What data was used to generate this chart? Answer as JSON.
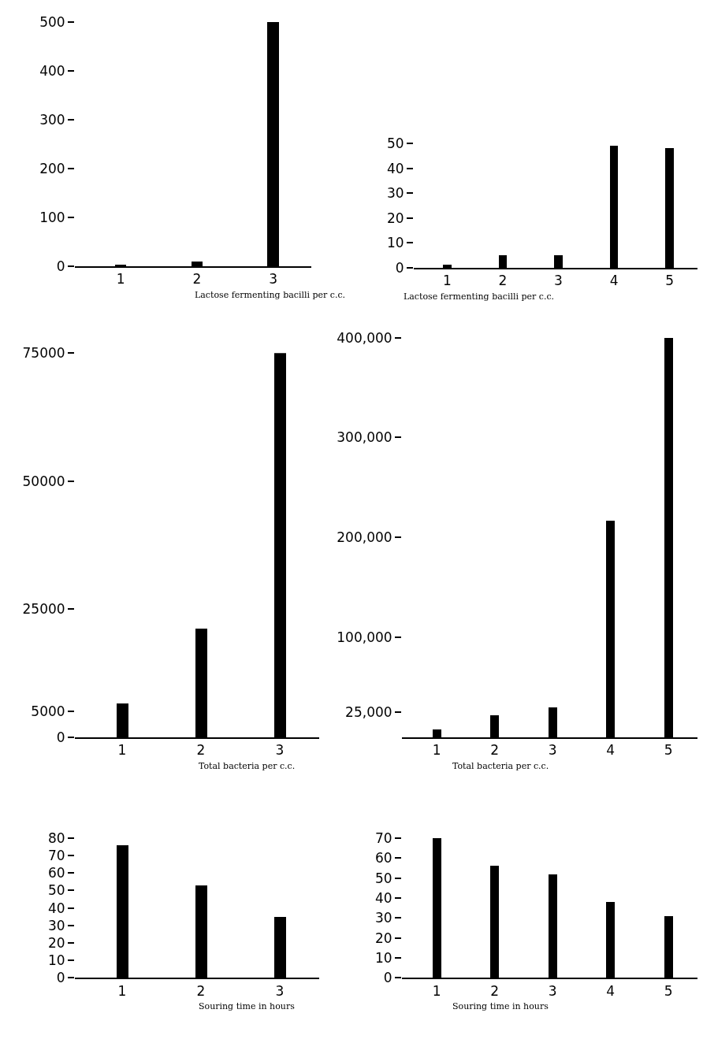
{
  "chart_data": [
    {
      "type": "bar",
      "categories": [
        "1",
        "2",
        "3"
      ],
      "values": [
        4,
        10,
        500
      ],
      "color": "#000000",
      "xlabel": "Lactose fermenting bacilli per c.c.",
      "ylim": [
        0,
        500
      ],
      "yticks": [
        0,
        100,
        200,
        300,
        400,
        500
      ]
    },
    {
      "type": "bar",
      "categories": [
        "1",
        "2",
        "3",
        "4",
        "5"
      ],
      "values": [
        1,
        5,
        5,
        49,
        48
      ],
      "color": "#000000",
      "xlabel": "Lactose fermenting bacilli per c.c.",
      "ylim": [
        0,
        50
      ],
      "yticks": [
        0,
        10,
        20,
        30,
        40,
        50
      ]
    },
    {
      "type": "bar",
      "categories": [
        "1",
        "2",
        "3"
      ],
      "values": [
        6600,
        21200,
        75000
      ],
      "color": "#000000",
      "xlabel": "Total bacteria per c.c.",
      "ylim": [
        0,
        75000
      ],
      "yticks": [
        0,
        5000,
        25000,
        50000,
        75000
      ]
    },
    {
      "type": "bar",
      "categories": [
        "1",
        "2",
        "3",
        "4",
        "5"
      ],
      "values": [
        8000,
        22000,
        30000,
        217000,
        400000
      ],
      "color": "#000000",
      "xlabel": "Total bacteria per c.c.",
      "ylim": [
        0,
        400000
      ],
      "yticks": [
        {
          "value": 25000,
          "label": "25,000"
        },
        {
          "value": 100000,
          "label": "100,000"
        },
        {
          "value": 200000,
          "label": "200,000"
        },
        {
          "value": 300000,
          "label": "300,000"
        },
        {
          "value": 400000,
          "label": "400,000"
        }
      ]
    },
    {
      "type": "bar",
      "categories": [
        "1",
        "2",
        "3"
      ],
      "values": [
        76,
        53,
        35
      ],
      "color": "#000000",
      "xlabel": "Souring time in hours",
      "ylim": [
        0,
        80
      ],
      "yticks": [
        0,
        10,
        20,
        30,
        40,
        50,
        60,
        70,
        80
      ]
    },
    {
      "type": "bar",
      "categories": [
        "1",
        "2",
        "3",
        "4",
        "5"
      ],
      "values": [
        70,
        56,
        52,
        38,
        31
      ],
      "color": "#000000",
      "xlabel": "Souring time in hours",
      "ylim": [
        0,
        70
      ],
      "yticks": [
        0,
        10,
        20,
        30,
        40,
        50,
        60,
        70
      ]
    }
  ]
}
